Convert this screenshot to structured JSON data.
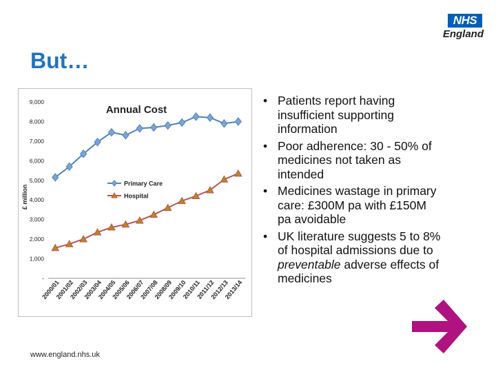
{
  "logo": {
    "box_text": "NHS",
    "sub_text": "England"
  },
  "slide": {
    "title": "But…"
  },
  "bullets": [
    {
      "parts": [
        {
          "t": "Patients report having insufficient supporting information",
          "i": false
        }
      ]
    },
    {
      "parts": [
        {
          "t": "Poor adherence: 30 - 50% of medicines not taken as intended",
          "i": false
        }
      ]
    },
    {
      "parts": [
        {
          "t": "Medicines wastage in primary care: £300M pa with £150M pa avoidable",
          "i": false
        }
      ]
    },
    {
      "parts": [
        {
          "t": "UK literature suggests 5 to 8% of hospital admissions due to ",
          "i": false
        },
        {
          "t": "preventable",
          "i": true
        },
        {
          "t": " adverse effects of medicines",
          "i": false
        }
      ]
    }
  ],
  "bullet_glyph": "•",
  "footer": {
    "url": "www.england.nhs.uk"
  },
  "colors": {
    "primary_care": "#4f81bd",
    "hospital": "#c0504d",
    "arrow": "#b0127f",
    "title": "#1f74c0"
  },
  "icons": {
    "arrow": "right-arrow-icon"
  },
  "chart_data": {
    "type": "line",
    "title": "Annual Cost",
    "xlabel": "",
    "ylabel": "£ million",
    "categories": [
      "2000/01",
      "2001/02",
      "2002/03",
      "2003/04",
      "2004/05",
      "2005/06",
      "2006/07",
      "2007/08",
      "2008/09",
      "2009/10",
      "2010/11",
      "2011/12",
      "2012/13",
      "2013/14"
    ],
    "series": [
      {
        "name": "Primary Care",
        "marker": "diamond",
        "color": "#4f81bd",
        "values": [
          5150,
          5700,
          6350,
          6950,
          7450,
          7300,
          7650,
          7700,
          7800,
          7950,
          8250,
          8200,
          7900,
          8000
        ]
      },
      {
        "name": "Hospital",
        "marker": "triangle",
        "color": "#c0504d",
        "values": [
          1550,
          1750,
          2000,
          2350,
          2600,
          2750,
          2950,
          3250,
          3600,
          3950,
          4200,
          4500,
          5050,
          5350
        ]
      }
    ],
    "ylim": [
      0,
      9000
    ],
    "yticks": [
      "-",
      "1,000",
      "2,000",
      "3,000",
      "4,000",
      "5,000",
      "6,000",
      "7,000",
      "8,000",
      "9,000"
    ],
    "grid": false,
    "legend_position": "center-left"
  }
}
